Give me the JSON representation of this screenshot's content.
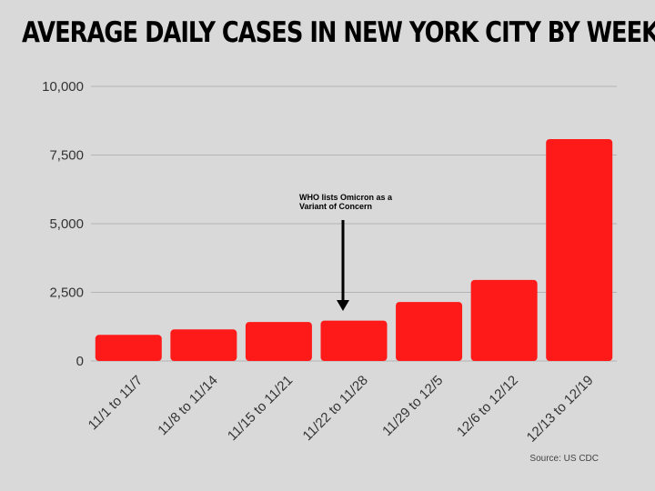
{
  "page": {
    "title": "AVERAGE DAILY CASES IN NEW YORK CITY BY WEEK",
    "source": "Source: US CDC"
  },
  "chart_data": {
    "type": "bar",
    "title": "AVERAGE DAILY CASES IN NEW YORK CITY BY WEEK",
    "xlabel": "",
    "ylabel": "",
    "categories": [
      "11/1 to 11/7",
      "11/8 to 11/14",
      "11/15 to 11/21",
      "11/22 to 11/28",
      "11/29 to 12/5",
      "12/6 to 12/12",
      "12/13 to 12/19"
    ],
    "values": [
      950,
      1150,
      1420,
      1470,
      2150,
      2950,
      8080
    ],
    "ylim": [
      0,
      10000
    ],
    "yticks": [
      0,
      2500,
      5000,
      7500,
      10000
    ],
    "ytick_labels": [
      "0",
      "2,500",
      "5,000",
      "7,500",
      "10,000"
    ],
    "grid": true,
    "bar_color": "#ff1a1a",
    "annotation": {
      "category": "11/22 to 11/28",
      "lines": [
        "WHO lists Omicron as a",
        "Variant of Concern"
      ]
    },
    "source": "Source: US CDC"
  }
}
